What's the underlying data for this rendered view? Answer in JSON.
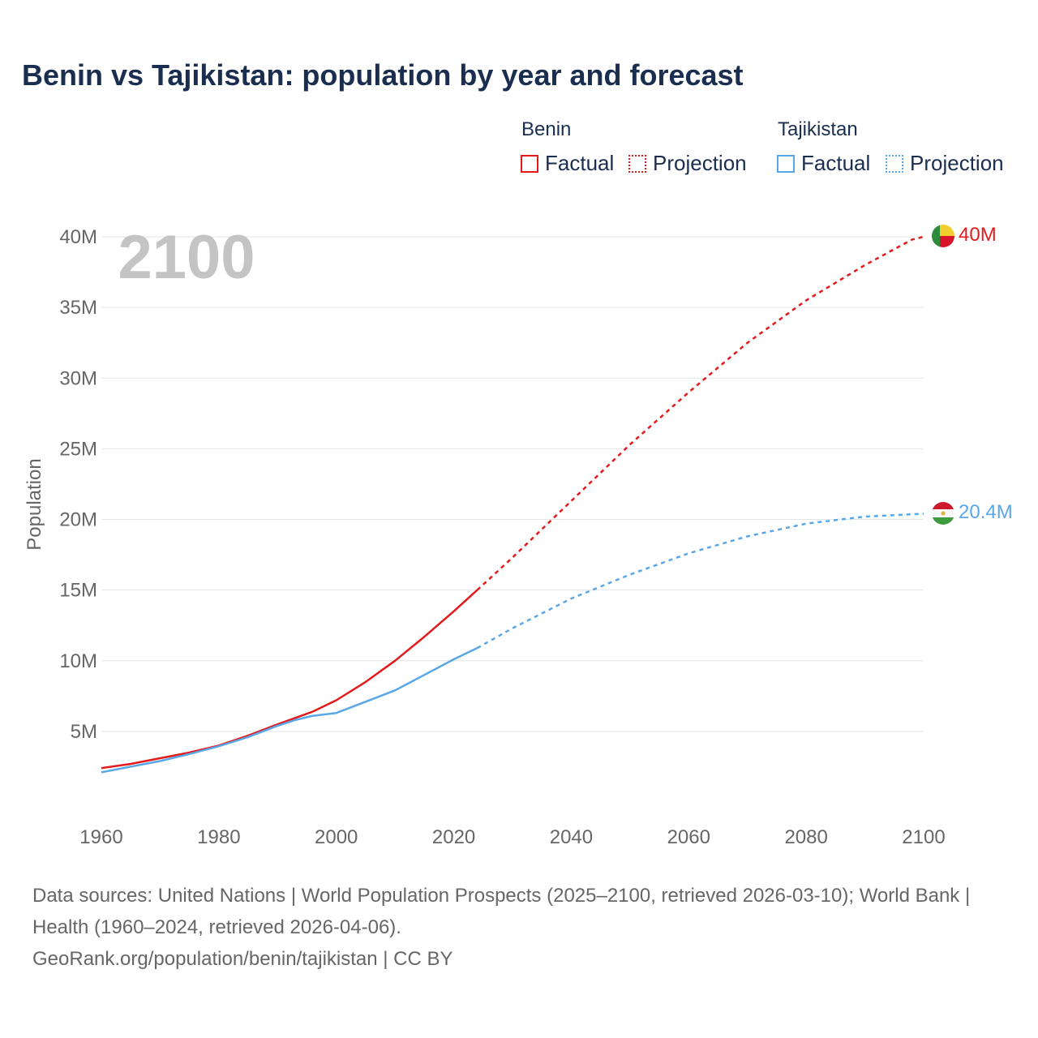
{
  "chart_data": {
    "type": "line",
    "title": "Benin vs Tajikistan: population by year and forecast",
    "ylabel": "Population",
    "xlabel": "",
    "year_watermark": "2100",
    "xlim": [
      1960,
      2100
    ],
    "ylim": [
      0,
      40000000
    ],
    "x_ticks": [
      "1960",
      "1980",
      "2000",
      "2020",
      "2040",
      "2060",
      "2080",
      "2100"
    ],
    "y_ticks": [
      {
        "label": "5M",
        "value": 5000000
      },
      {
        "label": "10M",
        "value": 10000000
      },
      {
        "label": "15M",
        "value": 15000000
      },
      {
        "label": "20M",
        "value": 20000000
      },
      {
        "label": "25M",
        "value": 25000000
      },
      {
        "label": "30M",
        "value": 30000000
      },
      {
        "label": "35M",
        "value": 35000000
      },
      {
        "label": "40M",
        "value": 40000000
      }
    ],
    "grid": true,
    "legend": {
      "groups": [
        {
          "name": "Benin",
          "color": "#e31a1c",
          "factual_label": "Factual",
          "projection_label": "Projection"
        },
        {
          "name": "Tajikistan",
          "color": "#5aa7e8",
          "factual_label": "Factual",
          "projection_label": "Projection"
        }
      ]
    },
    "series": [
      {
        "name": "Benin",
        "color": "#e31a1c",
        "end_label": "40M",
        "factual": {
          "x": [
            1960,
            1965,
            1970,
            1975,
            1980,
            1985,
            1990,
            1994,
            1996,
            2000,
            2005,
            2010,
            2015,
            2020,
            2024
          ],
          "y": [
            2.4,
            2.7,
            3.1,
            3.5,
            4.0,
            4.7,
            5.5,
            6.1,
            6.4,
            7.2,
            8.5,
            10.0,
            11.7,
            13.5,
            15.0
          ]
        },
        "projection": {
          "x": [
            2024,
            2030,
            2040,
            2050,
            2060,
            2070,
            2080,
            2090,
            2098,
            2100
          ],
          "y": [
            15.0,
            17.3,
            21.3,
            25.3,
            29.0,
            32.5,
            35.5,
            38.0,
            39.8,
            40.0
          ]
        }
      },
      {
        "name": "Tajikistan",
        "color": "#5aa7e8",
        "end_label": "20.4M",
        "factual": {
          "x": [
            1960,
            1965,
            1970,
            1975,
            1980,
            1985,
            1990,
            1993,
            1996,
            2000,
            2005,
            2010,
            2015,
            2020,
            2024
          ],
          "y": [
            2.1,
            2.5,
            2.9,
            3.4,
            3.95,
            4.6,
            5.4,
            5.8,
            6.1,
            6.3,
            7.1,
            7.9,
            9.0,
            10.1,
            10.9
          ]
        },
        "projection": {
          "x": [
            2024,
            2030,
            2040,
            2050,
            2060,
            2070,
            2080,
            2090,
            2100
          ],
          "y": [
            10.9,
            12.3,
            14.4,
            16.1,
            17.6,
            18.8,
            19.7,
            20.2,
            20.4
          ]
        }
      }
    ]
  },
  "footer": {
    "sources": "Data sources: United Nations | World Population Prospects (2025–2100, retrieved 2026-03-10); World Bank | Health (1960–2024, retrieved 2026-04-06).",
    "url": "GeoRank.org/population/benin/tajikistan | CC BY"
  }
}
